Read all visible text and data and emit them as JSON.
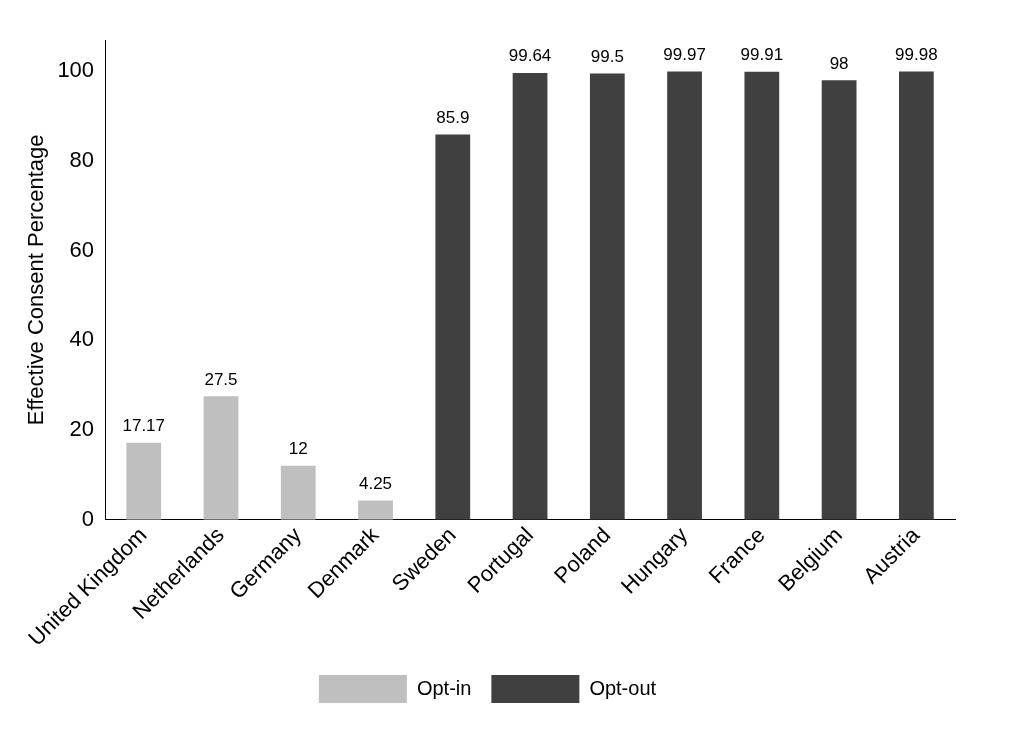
{
  "chart_data": {
    "type": "bar",
    "ylabel": "Effective Consent Percentage",
    "categories": [
      "United Kingdom",
      "Netherlands",
      "Germany",
      "Denmark",
      "Sweden",
      "Portugal",
      "Poland",
      "Hungary",
      "France",
      "Belgium",
      "Austria"
    ],
    "series": [
      {
        "name": "Opt-in",
        "color": "#bfbfbf",
        "values": [
          17.17,
          27.5,
          12,
          4.25,
          null,
          null,
          null,
          null,
          null,
          null,
          null
        ]
      },
      {
        "name": "Opt-out",
        "color": "#404040",
        "values": [
          null,
          null,
          null,
          null,
          85.9,
          99.64,
          99.5,
          99.97,
          99.91,
          98,
          99.98
        ]
      }
    ],
    "ylim": [
      0,
      107
    ],
    "yticks": [
      0,
      20,
      40,
      60,
      80,
      100
    ],
    "grid": false,
    "legend": "bottom",
    "data_labels": true
  }
}
